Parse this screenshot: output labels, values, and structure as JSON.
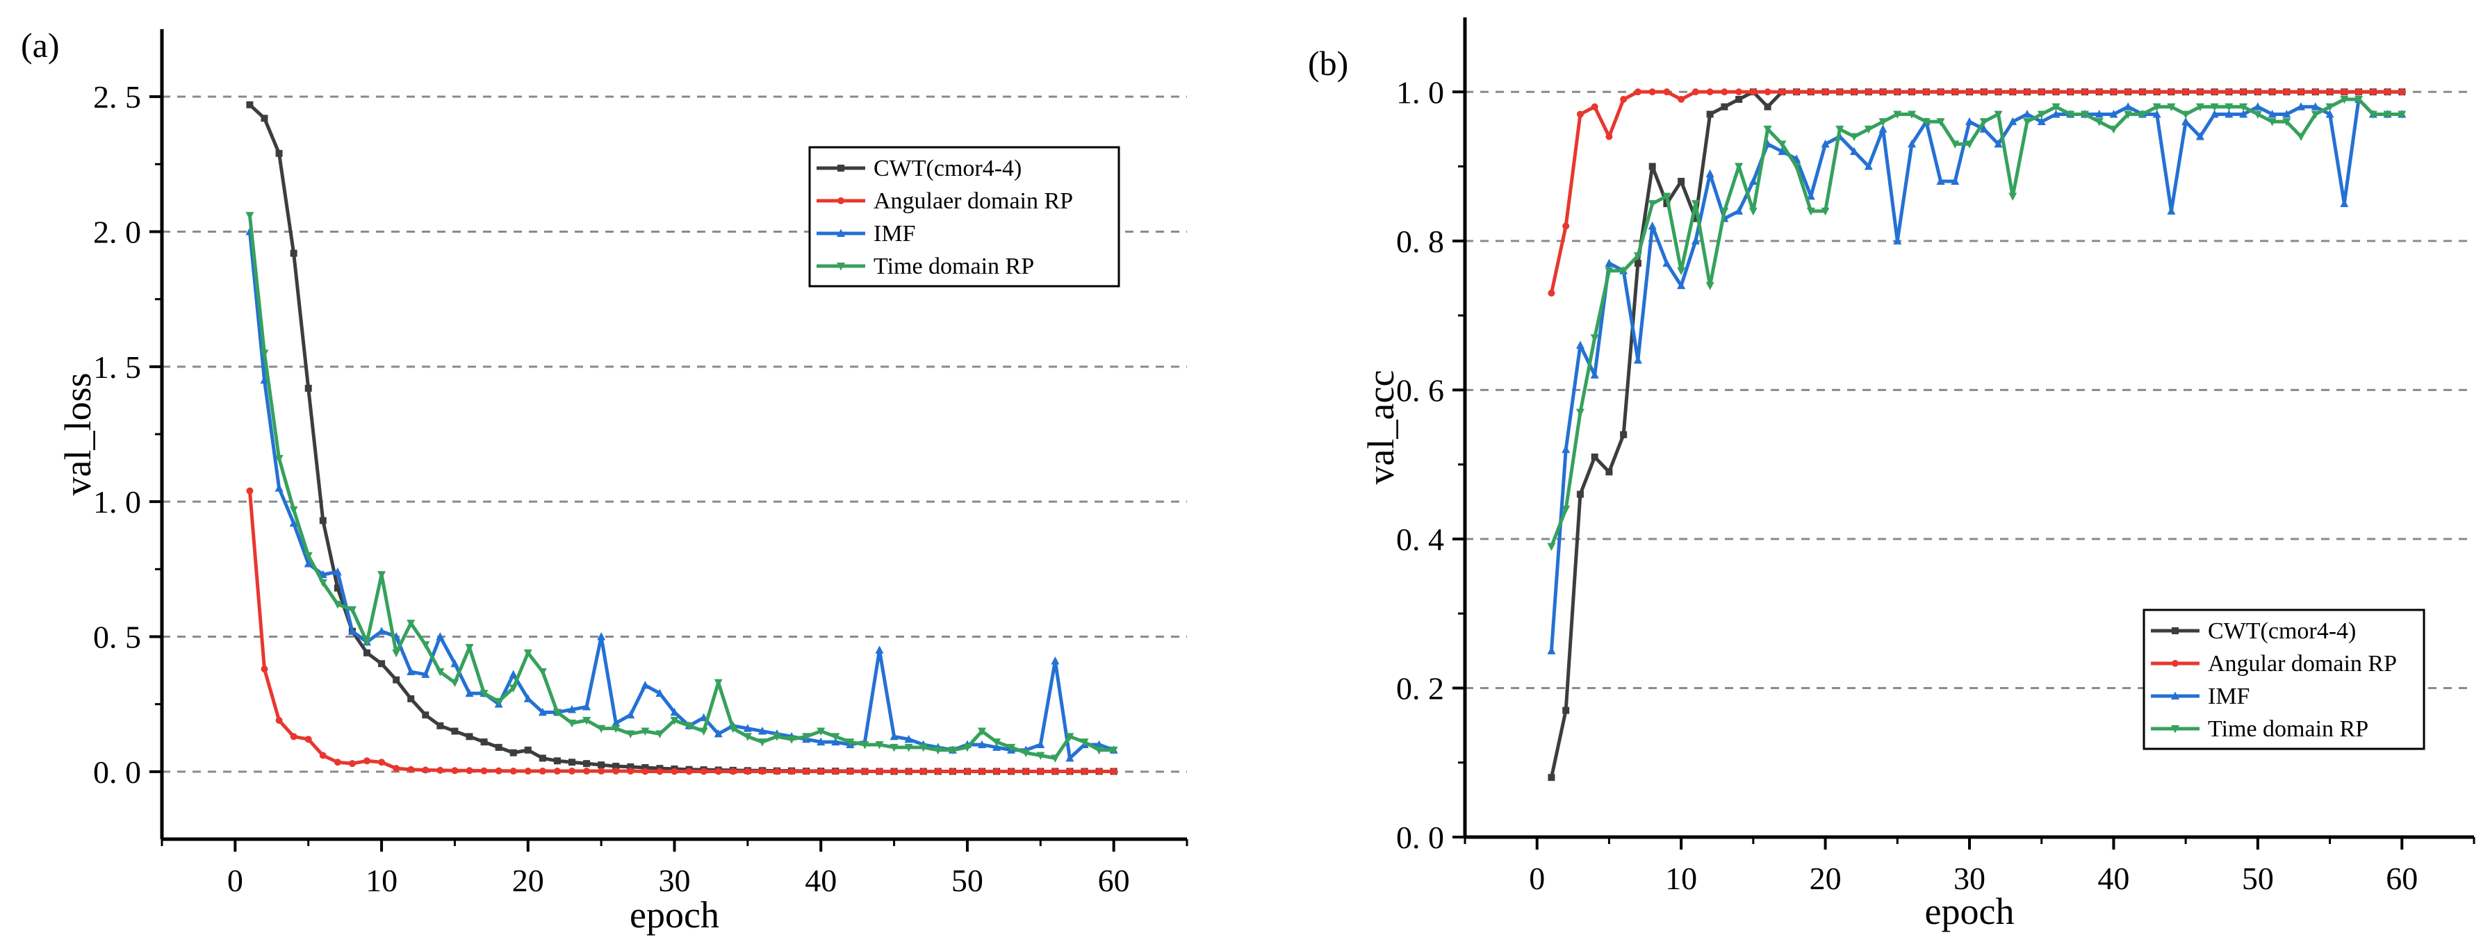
{
  "chart_data": [
    {
      "type": "line",
      "panel_label": "(a)",
      "xlabel": "epoch",
      "ylabel": "val_loss",
      "xlim": [
        -5,
        65
      ],
      "ylim": [
        -0.25,
        2.75
      ],
      "xticks": [
        0,
        10,
        20,
        30,
        40,
        50,
        60
      ],
      "yticks": [
        0.0,
        0.5,
        1.0,
        1.5,
        2.0,
        2.5
      ],
      "ytick_labels": [
        "0. 0",
        "0. 5",
        "1. 0",
        "1. 5",
        "2. 0",
        "2. 5"
      ],
      "grid": "horizontal dashed at y ticks",
      "legend_position": "upper-right",
      "series": [
        {
          "name": "CWT(cmor4-4)",
          "color": "#3d3d3d",
          "marker": "square",
          "x": [
            1,
            2,
            3,
            4,
            5,
            6,
            7,
            8,
            9,
            10,
            11,
            12,
            13,
            14,
            15,
            16,
            17,
            18,
            19,
            20,
            21,
            22,
            23,
            24,
            25,
            26,
            27,
            28,
            29,
            30,
            31,
            32,
            33,
            34,
            35,
            36,
            37,
            38,
            39,
            40,
            41,
            42,
            43,
            44,
            45,
            46,
            47,
            48,
            49,
            50,
            51,
            52,
            53,
            54,
            55,
            56,
            57,
            58,
            59,
            60
          ],
          "y": [
            2.47,
            2.42,
            2.29,
            1.92,
            1.42,
            0.93,
            0.68,
            0.52,
            0.44,
            0.4,
            0.34,
            0.27,
            0.21,
            0.17,
            0.15,
            0.13,
            0.11,
            0.09,
            0.07,
            0.08,
            0.05,
            0.04,
            0.035,
            0.03,
            0.025,
            0.02,
            0.018,
            0.015,
            0.012,
            0.01,
            0.008,
            0.007,
            0.006,
            0.005,
            0.004,
            0.004,
            0.003,
            0.003,
            0.002,
            0.002,
            0.002,
            0.002,
            0.001,
            0.001,
            0.001,
            0.001,
            0.001,
            0.001,
            0.001,
            0.001,
            0.001,
            0.001,
            0.001,
            0.001,
            0.001,
            0.001,
            0.001,
            0.001,
            0.001,
            0.001
          ]
        },
        {
          "name": "Angulaer domain RP",
          "color": "#e8372f",
          "marker": "circle",
          "x": [
            1,
            2,
            3,
            4,
            5,
            6,
            7,
            8,
            9,
            10,
            11,
            12,
            13,
            14,
            15,
            16,
            17,
            18,
            19,
            20,
            21,
            22,
            23,
            24,
            25,
            26,
            27,
            28,
            29,
            30,
            31,
            32,
            33,
            34,
            35,
            36,
            37,
            38,
            39,
            40,
            41,
            42,
            43,
            44,
            45,
            46,
            47,
            48,
            49,
            50,
            51,
            52,
            53,
            54,
            55,
            56,
            57,
            58,
            59,
            60
          ],
          "y": [
            1.04,
            0.38,
            0.19,
            0.13,
            0.12,
            0.06,
            0.035,
            0.03,
            0.04,
            0.035,
            0.012,
            0.008,
            0.006,
            0.005,
            0.004,
            0.004,
            0.003,
            0.003,
            0.002,
            0.002,
            0.002,
            0.002,
            0.002,
            0.002,
            0.002,
            0.002,
            0.002,
            0.001,
            0.001,
            0.001,
            0.001,
            0.001,
            0.001,
            0.001,
            0.001,
            0.001,
            0.001,
            0.001,
            0.001,
            0.001,
            0.001,
            0.001,
            0.001,
            0.001,
            0.001,
            0.001,
            0.001,
            0.001,
            0.001,
            0.001,
            0.001,
            0.001,
            0.001,
            0.001,
            0.001,
            0.001,
            0.001,
            0.001,
            0.001,
            0.001
          ]
        },
        {
          "name": "IMF",
          "color": "#2471d4",
          "marker": "triangle",
          "x": [
            1,
            2,
            3,
            4,
            5,
            6,
            7,
            8,
            9,
            10,
            11,
            12,
            13,
            14,
            15,
            16,
            17,
            18,
            19,
            20,
            21,
            22,
            23,
            24,
            25,
            26,
            27,
            28,
            29,
            30,
            31,
            32,
            33,
            34,
            35,
            36,
            37,
            38,
            39,
            40,
            41,
            42,
            43,
            44,
            45,
            46,
            47,
            48,
            49,
            50,
            51,
            52,
            53,
            54,
            55,
            56,
            57,
            58,
            59,
            60
          ],
          "y": [
            2.0,
            1.45,
            1.05,
            0.92,
            0.77,
            0.73,
            0.74,
            0.52,
            0.48,
            0.52,
            0.5,
            0.37,
            0.36,
            0.5,
            0.4,
            0.29,
            0.29,
            0.25,
            0.36,
            0.27,
            0.22,
            0.22,
            0.23,
            0.24,
            0.5,
            0.18,
            0.21,
            0.32,
            0.29,
            0.22,
            0.17,
            0.2,
            0.14,
            0.17,
            0.16,
            0.15,
            0.14,
            0.13,
            0.12,
            0.11,
            0.11,
            0.1,
            0.11,
            0.45,
            0.13,
            0.12,
            0.1,
            0.09,
            0.08,
            0.1,
            0.1,
            0.09,
            0.08,
            0.08,
            0.1,
            0.41,
            0.05,
            0.1,
            0.1,
            0.08
          ]
        },
        {
          "name": "Time domain RP",
          "color": "#36a15c",
          "marker": "inverted-triangle",
          "x": [
            1,
            2,
            3,
            4,
            5,
            6,
            7,
            8,
            9,
            10,
            11,
            12,
            13,
            14,
            15,
            16,
            17,
            18,
            19,
            20,
            21,
            22,
            23,
            24,
            25,
            26,
            27,
            28,
            29,
            30,
            31,
            32,
            33,
            34,
            35,
            36,
            37,
            38,
            39,
            40,
            41,
            42,
            43,
            44,
            45,
            46,
            47,
            48,
            49,
            50,
            51,
            52,
            53,
            54,
            55,
            56,
            57,
            58,
            59,
            60
          ],
          "y": [
            2.06,
            1.55,
            1.16,
            0.97,
            0.8,
            0.7,
            0.62,
            0.6,
            0.48,
            0.73,
            0.44,
            0.55,
            0.47,
            0.37,
            0.33,
            0.46,
            0.29,
            0.26,
            0.31,
            0.44,
            0.37,
            0.22,
            0.18,
            0.19,
            0.16,
            0.16,
            0.14,
            0.15,
            0.14,
            0.19,
            0.17,
            0.15,
            0.33,
            0.16,
            0.13,
            0.11,
            0.13,
            0.12,
            0.13,
            0.15,
            0.13,
            0.11,
            0.1,
            0.1,
            0.09,
            0.09,
            0.09,
            0.08,
            0.08,
            0.09,
            0.15,
            0.11,
            0.09,
            0.07,
            0.06,
            0.05,
            0.13,
            0.11,
            0.08,
            0.08
          ]
        }
      ]
    },
    {
      "type": "line",
      "panel_label": "(b)",
      "xlabel": "epoch",
      "ylabel": "val_acc",
      "xlim": [
        -5,
        65
      ],
      "ylim": [
        0,
        1.1
      ],
      "xticks": [
        0,
        10,
        20,
        30,
        40,
        50,
        60
      ],
      "yticks": [
        0.0,
        0.2,
        0.4,
        0.6,
        0.8,
        1.0
      ],
      "ytick_labels": [
        "0. 0",
        "0. 2",
        "0. 4",
        "0. 6",
        "0. 8",
        "1. 0"
      ],
      "grid": "horizontal dashed at y ticks",
      "legend_position": "lower-right",
      "series": [
        {
          "name": "CWT(cmor4-4)",
          "color": "#3d3d3d",
          "marker": "square",
          "x": [
            1,
            2,
            3,
            4,
            5,
            6,
            7,
            8,
            9,
            10,
            11,
            12,
            13,
            14,
            15,
            16,
            17,
            18,
            19,
            20,
            21,
            22,
            23,
            24,
            25,
            26,
            27,
            28,
            29,
            30,
            31,
            32,
            33,
            34,
            35,
            36,
            37,
            38,
            39,
            40,
            41,
            42,
            43,
            44,
            45,
            46,
            47,
            48,
            49,
            50,
            51,
            52,
            53,
            54,
            55,
            56,
            57,
            58,
            59,
            60
          ],
          "y": [
            0.08,
            0.17,
            0.46,
            0.51,
            0.49,
            0.54,
            0.77,
            0.9,
            0.85,
            0.88,
            0.83,
            0.97,
            0.98,
            0.99,
            1.0,
            0.98,
            1.0,
            1.0,
            1.0,
            1.0,
            1.0,
            1.0,
            1.0,
            1.0,
            1.0,
            1.0,
            1.0,
            1.0,
            1.0,
            1.0,
            1.0,
            1.0,
            1.0,
            1.0,
            1.0,
            1.0,
            1.0,
            1.0,
            1.0,
            1.0,
            1.0,
            1.0,
            1.0,
            1.0,
            1.0,
            1.0,
            1.0,
            1.0,
            1.0,
            1.0,
            1.0,
            1.0,
            1.0,
            1.0,
            1.0,
            1.0,
            1.0,
            1.0,
            1.0,
            1.0
          ]
        },
        {
          "name": "Angular domain RP",
          "color": "#e8372f",
          "marker": "circle",
          "x": [
            1,
            2,
            3,
            4,
            5,
            6,
            7,
            8,
            9,
            10,
            11,
            12,
            13,
            14,
            15,
            16,
            17,
            18,
            19,
            20,
            21,
            22,
            23,
            24,
            25,
            26,
            27,
            28,
            29,
            30,
            31,
            32,
            33,
            34,
            35,
            36,
            37,
            38,
            39,
            40,
            41,
            42,
            43,
            44,
            45,
            46,
            47,
            48,
            49,
            50,
            51,
            52,
            53,
            54,
            55,
            56,
            57,
            58,
            59,
            60
          ],
          "y": [
            0.73,
            0.82,
            0.97,
            0.98,
            0.94,
            0.99,
            1.0,
            1.0,
            1.0,
            0.99,
            1.0,
            1.0,
            1.0,
            1.0,
            1.0,
            1.0,
            1.0,
            1.0,
            1.0,
            1.0,
            1.0,
            1.0,
            1.0,
            1.0,
            1.0,
            1.0,
            1.0,
            1.0,
            1.0,
            1.0,
            1.0,
            1.0,
            1.0,
            1.0,
            1.0,
            1.0,
            1.0,
            1.0,
            1.0,
            1.0,
            1.0,
            1.0,
            1.0,
            1.0,
            1.0,
            1.0,
            1.0,
            1.0,
            1.0,
            1.0,
            1.0,
            1.0,
            1.0,
            1.0,
            1.0,
            1.0,
            1.0,
            1.0,
            1.0,
            1.0
          ]
        },
        {
          "name": "IMF",
          "color": "#2471d4",
          "marker": "triangle",
          "x": [
            1,
            2,
            3,
            4,
            5,
            6,
            7,
            8,
            9,
            10,
            11,
            12,
            13,
            14,
            15,
            16,
            17,
            18,
            19,
            20,
            21,
            22,
            23,
            24,
            25,
            26,
            27,
            28,
            29,
            30,
            31,
            32,
            33,
            34,
            35,
            36,
            37,
            38,
            39,
            40,
            41,
            42,
            43,
            44,
            45,
            46,
            47,
            48,
            49,
            50,
            51,
            52,
            53,
            54,
            55,
            56,
            57,
            58,
            59,
            60
          ],
          "y": [
            0.25,
            0.52,
            0.66,
            0.62,
            0.77,
            0.76,
            0.64,
            0.82,
            0.77,
            0.74,
            0.8,
            0.89,
            0.83,
            0.84,
            0.88,
            0.93,
            0.92,
            0.91,
            0.86,
            0.93,
            0.94,
            0.92,
            0.9,
            0.95,
            0.8,
            0.93,
            0.96,
            0.88,
            0.88,
            0.96,
            0.95,
            0.93,
            0.96,
            0.97,
            0.96,
            0.97,
            0.97,
            0.97,
            0.97,
            0.97,
            0.98,
            0.97,
            0.97,
            0.84,
            0.96,
            0.94,
            0.97,
            0.97,
            0.97,
            0.98,
            0.97,
            0.97,
            0.98,
            0.98,
            0.97,
            0.85,
            0.99,
            0.97,
            0.97,
            0.97
          ]
        },
        {
          "name": "Time domain RP",
          "color": "#36a15c",
          "marker": "inverted-triangle",
          "x": [
            1,
            2,
            3,
            4,
            5,
            6,
            7,
            8,
            9,
            10,
            11,
            12,
            13,
            14,
            15,
            16,
            17,
            18,
            19,
            20,
            21,
            22,
            23,
            24,
            25,
            26,
            27,
            28,
            29,
            30,
            31,
            32,
            33,
            34,
            35,
            36,
            37,
            38,
            39,
            40,
            41,
            42,
            43,
            44,
            45,
            46,
            47,
            48,
            49,
            50,
            51,
            52,
            53,
            54,
            55,
            56,
            57,
            58,
            59,
            60
          ],
          "y": [
            0.39,
            0.44,
            0.57,
            0.67,
            0.76,
            0.76,
            0.78,
            0.85,
            0.86,
            0.76,
            0.85,
            0.74,
            0.84,
            0.9,
            0.84,
            0.95,
            0.93,
            0.9,
            0.84,
            0.84,
            0.95,
            0.94,
            0.95,
            0.96,
            0.97,
            0.97,
            0.96,
            0.96,
            0.93,
            0.93,
            0.96,
            0.97,
            0.86,
            0.96,
            0.97,
            0.98,
            0.97,
            0.97,
            0.96,
            0.95,
            0.97,
            0.97,
            0.98,
            0.98,
            0.97,
            0.98,
            0.98,
            0.98,
            0.98,
            0.97,
            0.96,
            0.96,
            0.94,
            0.97,
            0.98,
            0.99,
            0.99,
            0.97,
            0.97,
            0.97
          ]
        }
      ]
    }
  ]
}
